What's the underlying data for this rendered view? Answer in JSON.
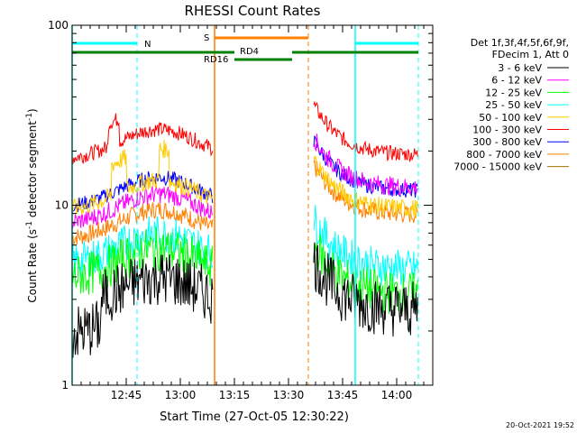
{
  "chart_data": {
    "type": "line",
    "title": "RHESSI Count Rates",
    "xlabel": "Start Time (27-Oct-05 12:30:22)",
    "ylabel": "Count Rate (s",
    "ylabel_sup": "-1",
    "ylabel_mid": " detector segment",
    "ylabel_close": ")",
    "x_range_minutes": [
      0,
      100
    ],
    "ylim": [
      1,
      100
    ],
    "y_scale": "log",
    "y_ticks": [
      {
        "value": 1,
        "label": "1"
      },
      {
        "value": 10,
        "label": "10"
      },
      {
        "value": 100,
        "label": "100"
      }
    ],
    "x_ticks": [
      {
        "minute": 15,
        "label": "12:45"
      },
      {
        "minute": 30,
        "label": "13:00"
      },
      {
        "minute": 45,
        "label": "13:15"
      },
      {
        "minute": 60,
        "label": "13:30"
      },
      {
        "minute": 75,
        "label": "13:45"
      },
      {
        "minute": 90,
        "label": "14:00"
      }
    ],
    "legend_header": [
      "Det 1f,3f,4f,5f,6f,9f,",
      "FDecim 1, Att 0"
    ],
    "legend_position": "right",
    "series": [
      {
        "name": "3 - 6 keV",
        "color": "#000000"
      },
      {
        "name": "6 - 12 keV",
        "color": "#ff00ff"
      },
      {
        "name": "12 - 25 keV",
        "color": "#00ff00"
      },
      {
        "name": "25 - 50 keV",
        "color": "#00ffff"
      },
      {
        "name": "50 - 100 keV",
        "color": "#ffcc00"
      },
      {
        "name": "100 - 300 keV",
        "color": "#ff0000"
      },
      {
        "name": "300 - 800 keV",
        "color": "#0000ff"
      },
      {
        "name": "800 - 7000 keV",
        "color": "#ff7f00"
      },
      {
        "name": "7000 - 15000 keV",
        "color": "#a07000"
      }
    ],
    "flags": [
      {
        "label": "N",
        "color": "#00ffff"
      },
      {
        "label": "S",
        "color": "#ff7f00"
      },
      {
        "label": "RD4",
        "color": "#008000"
      },
      {
        "label": "RD16",
        "color": "#008000"
      }
    ],
    "timestamp": "20-Oct-2021 19:52"
  }
}
